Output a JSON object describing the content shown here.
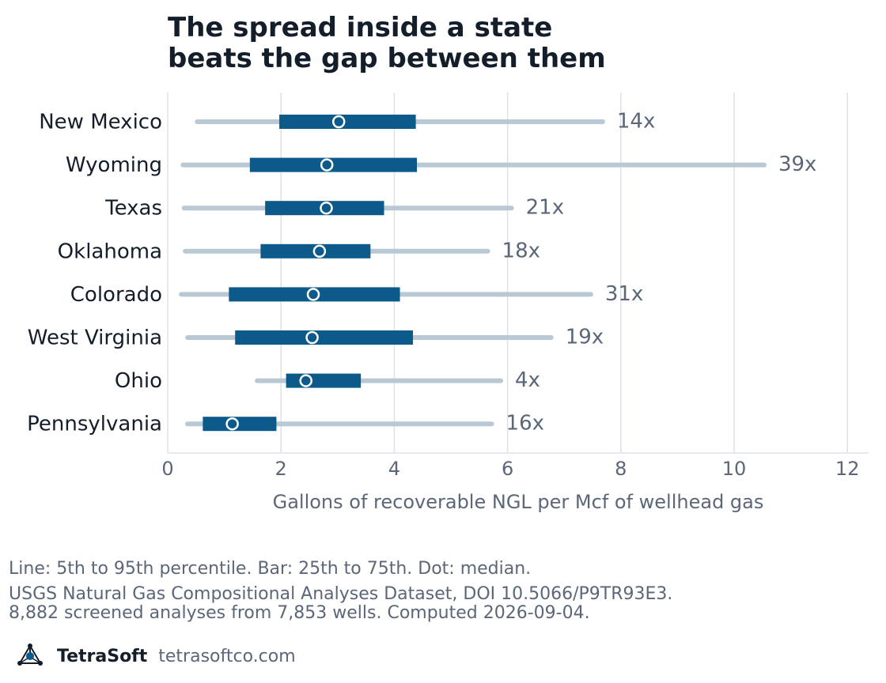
{
  "title_lines": [
    "The spread inside a state",
    "beats the gap between them"
  ],
  "chart_data": {
    "type": "range_bar",
    "xlabel": "Gallons of recoverable NGL per Mcf of wellhead gas",
    "xlim": [
      0,
      12.3
    ],
    "xticks": [
      0,
      2,
      4,
      6,
      8,
      10,
      12
    ],
    "grid": "vertical",
    "categories": [
      "New Mexico",
      "Wyoming",
      "Texas",
      "Oklahoma",
      "Colorado",
      "West Virginia",
      "Ohio",
      "Pennsylvania"
    ],
    "p5": [
      0.52,
      0.27,
      0.29,
      0.31,
      0.24,
      0.35,
      1.58,
      0.35
    ],
    "p25": [
      1.97,
      1.45,
      1.72,
      1.64,
      1.08,
      1.19,
      2.09,
      0.62
    ],
    "median": [
      3.02,
      2.81,
      2.8,
      2.68,
      2.57,
      2.55,
      2.44,
      1.14
    ],
    "p75": [
      4.38,
      4.4,
      3.82,
      3.58,
      4.1,
      4.33,
      3.41,
      1.92
    ],
    "p95": [
      7.68,
      10.53,
      6.07,
      5.65,
      7.47,
      6.77,
      5.88,
      5.72
    ],
    "ratio_labels": [
      "14x",
      "39x",
      "21x",
      "18x",
      "31x",
      "19x",
      "4x",
      "16x"
    ],
    "colors": {
      "whisker": "#b8c8d4",
      "box": "#0b5a8a",
      "median_fill": "#0b5a8a",
      "median_stroke": "#ffffff",
      "grid": "#dde2e8",
      "text": "#141e2a",
      "muted": "#5b6778"
    }
  },
  "notes": {
    "legend": "Line: 5th to 95th percentile. Bar: 25th to 75th. Dot: median.",
    "source_line1": "USGS Natural Gas Compositional Analyses Dataset, DOI 10.5066/P9TR93E3.",
    "source_line2": "8,882 screened analyses from 7,853 wells. Computed 2026-09-04."
  },
  "brand": {
    "name": "TetraSoft",
    "url": "tetrasoftco.com",
    "logo_icon": "tetrahedron-logo-icon"
  }
}
